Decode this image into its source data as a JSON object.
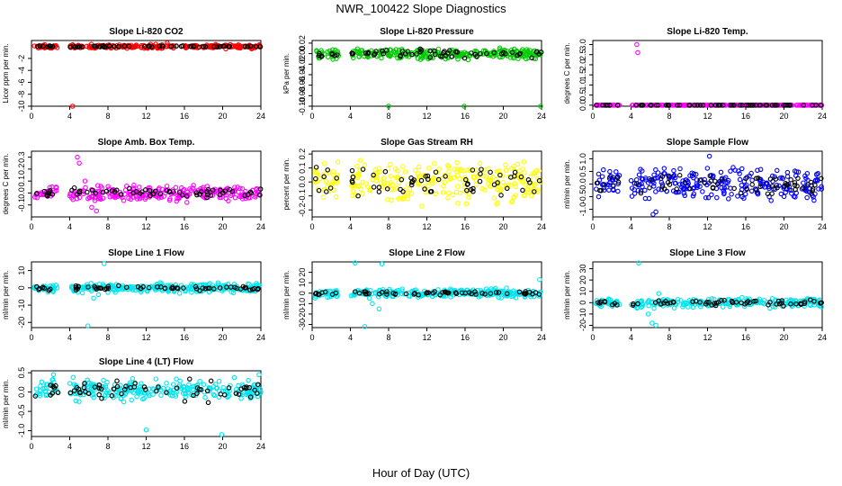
{
  "page_title": "NWR_100422  Slope Diagnostics",
  "x_axis_label": "Hour of Day (UTC)",
  "chart_data": [
    {
      "type": "scatter",
      "title": "Slope Li-820 CO2",
      "ylabel": "Licor ppm per min.",
      "color": "#ff0000",
      "xlim": [
        0,
        24
      ],
      "ylim": [
        -10,
        1
      ],
      "xticks": [
        0,
        4,
        8,
        12,
        16,
        20,
        24
      ],
      "yticks": [
        -10,
        -8,
        -6,
        -4,
        -2
      ],
      "ytick_labels": [
        "-10",
        "-8",
        "-6",
        "-4",
        "-2"
      ],
      "center": 0,
      "spread": 0.25,
      "black_spread": 0.1,
      "outliers": [
        {
          "x": 4.3,
          "y": -10
        },
        {
          "x": 14.2,
          "y": 0.6
        }
      ]
    },
    {
      "type": "scatter",
      "title": "Slope Li-820 Pressure",
      "ylabel": "kPa per min.",
      "color": "#00cc00",
      "xlim": [
        0,
        24
      ],
      "ylim": [
        -0.1,
        0.025
      ],
      "xticks": [
        0,
        4,
        8,
        12,
        16,
        20,
        24
      ],
      "yticks": [
        -0.1,
        -0.08,
        -0.06,
        -0.04,
        -0.02,
        0.0,
        0.02
      ],
      "ytick_labels": [
        "-0.10",
        "-0.08",
        "-0.06",
        "-0.04",
        "-0.02",
        "0.00",
        "0.02"
      ],
      "center": 0,
      "spread": 0.008,
      "black_spread": 0.006,
      "outliers": [
        {
          "x": 8.0,
          "y": -0.1
        },
        {
          "x": 15.9,
          "y": -0.1
        },
        {
          "x": 23.9,
          "y": -0.1
        }
      ]
    },
    {
      "type": "scatter",
      "title": "Slope Li-820 Temp.",
      "ylabel": "degrees C per min.",
      "color": "#ff00ff",
      "xlim": [
        0,
        24
      ],
      "ylim": [
        -0.05,
        3.2
      ],
      "xticks": [
        0,
        4,
        8,
        12,
        16,
        20,
        24
      ],
      "yticks": [
        0.0,
        0.5,
        1.0,
        1.5,
        2.0,
        2.5,
        3.0
      ],
      "ytick_labels": [
        "0.0",
        "0.5",
        "1.0",
        "1.5",
        "2.0",
        "2.5",
        "3.0"
      ],
      "center": 0,
      "spread": 0.0,
      "black_spread": 0.0,
      "outliers": [
        {
          "x": 4.6,
          "y": 3.0
        },
        {
          "x": 4.7,
          "y": 2.6
        }
      ]
    },
    {
      "type": "scatter",
      "title": "Slope Amb. Box Temp.",
      "ylabel": "degrees C per min.",
      "color": "#ff00ff",
      "xlim": [
        0,
        24
      ],
      "ylim": [
        -0.2,
        0.35
      ],
      "xticks": [
        0,
        4,
        8,
        12,
        16,
        20,
        24
      ],
      "yticks": [
        -0.1,
        0.0,
        0.1,
        0.2,
        0.3
      ],
      "ytick_labels": [
        "-0.1",
        "0.0",
        "0.1",
        "0.2",
        "0.3"
      ],
      "center": 0,
      "spread": 0.05,
      "black_spread": 0.03,
      "outliers": [
        {
          "x": 4.8,
          "y": 0.3
        },
        {
          "x": 5.0,
          "y": 0.25
        },
        {
          "x": 5.6,
          "y": 0.1
        },
        {
          "x": 6.3,
          "y": -0.12
        },
        {
          "x": 6.8,
          "y": -0.15
        },
        {
          "x": 7.2,
          "y": -0.05
        }
      ]
    },
    {
      "type": "scatter",
      "title": "Slope Gas Stream RH",
      "ylabel": "percent per min.",
      "color": "#ffff00",
      "xlim": [
        0,
        24
      ],
      "ylim": [
        -0.25,
        0.22
      ],
      "xticks": [
        0,
        4,
        8,
        12,
        16,
        20,
        24
      ],
      "yticks": [
        -0.2,
        -0.1,
        0.0,
        0.1,
        0.2
      ],
      "ytick_labels": [
        "-0.2",
        "-0.1",
        "0.0",
        "0.1",
        "0.2"
      ],
      "center": 0,
      "spread": 0.12,
      "black_spread": 0.08,
      "outliers": []
    },
    {
      "type": "scatter",
      "title": "Slope Sample Flow",
      "ylabel": "ml/min per min.",
      "color": "#0000ff",
      "xlim": [
        0,
        24
      ],
      "ylim": [
        -1.3,
        1.3
      ],
      "xticks": [
        0,
        4,
        8,
        12,
        16,
        20,
        24
      ],
      "yticks": [
        -1.0,
        -0.5,
        0.0,
        0.5,
        1.0
      ],
      "ytick_labels": [
        "-1.0",
        "-0.5",
        "0.0",
        "0.5",
        "1.0"
      ],
      "center": 0,
      "spread": 0.5,
      "black_spread": 0.35,
      "outliers": [
        {
          "x": 6.3,
          "y": -1.2
        },
        {
          "x": 6.6,
          "y": -1.1
        },
        {
          "x": 12.2,
          "y": 1.1
        }
      ]
    },
    {
      "type": "scatter",
      "title": "Slope Line 1 Flow",
      "ylabel": "ml/min per min.",
      "color": "#00e5ee",
      "xlim": [
        0,
        24
      ],
      "ylim": [
        -23,
        15
      ],
      "xticks": [
        0,
        4,
        8,
        12,
        16,
        20,
        24
      ],
      "yticks": [
        -20,
        -10,
        0,
        10
      ],
      "ytick_labels": [
        "-20",
        "-10",
        "0",
        "10"
      ],
      "center": 0,
      "spread": 2,
      "black_spread": 1,
      "outliers": [
        {
          "x": 5.9,
          "y": -22
        },
        {
          "x": 7.6,
          "y": 14
        },
        {
          "x": 6.5,
          "y": -6
        },
        {
          "x": 7.0,
          "y": -4
        }
      ]
    },
    {
      "type": "scatter",
      "title": "Slope Line 2 Flow",
      "ylabel": "ml/min per min.",
      "color": "#00e5ee",
      "xlim": [
        0,
        24
      ],
      "ylim": [
        -33,
        30
      ],
      "xticks": [
        0,
        4,
        8,
        12,
        16,
        20,
        24
      ],
      "yticks": [
        -30,
        -20,
        -10,
        0,
        10,
        20
      ],
      "ytick_labels": [
        "-30",
        "-20",
        "-10",
        "0",
        "10",
        "20"
      ],
      "center": 0,
      "spread": 3,
      "black_spread": 1.5,
      "outliers": [
        {
          "x": 4.5,
          "y": 29
        },
        {
          "x": 5.5,
          "y": -32
        },
        {
          "x": 6.3,
          "y": -10
        },
        {
          "x": 7.3,
          "y": 28
        },
        {
          "x": 6.0,
          "y": -5
        },
        {
          "x": 7.0,
          "y": -15
        },
        {
          "x": 23.8,
          "y": 13
        }
      ]
    },
    {
      "type": "scatter",
      "title": "Slope Line 3 Flow",
      "ylabel": "ml/min per min.",
      "color": "#00e5ee",
      "xlim": [
        0,
        24
      ],
      "ylim": [
        -22,
        36
      ],
      "xticks": [
        0,
        4,
        8,
        12,
        16,
        20,
        24
      ],
      "yticks": [
        -20,
        -10,
        0,
        10,
        20,
        30
      ],
      "ytick_labels": [
        "-20",
        "-10",
        "0",
        "10",
        "20",
        "30"
      ],
      "center": 0,
      "spread": 3,
      "black_spread": 2,
      "outliers": [
        {
          "x": 4.8,
          "y": 35
        },
        {
          "x": 5.8,
          "y": -10
        },
        {
          "x": 6.2,
          "y": -18
        },
        {
          "x": 6.6,
          "y": -20
        },
        {
          "x": 6.9,
          "y": 8
        },
        {
          "x": 6.4,
          "y": -5
        }
      ]
    },
    {
      "type": "scatter",
      "title": "Slope Line 4 (LT) Flow",
      "ylabel": "ml/min per min.",
      "color": "#00e5ee",
      "xlim": [
        0,
        24
      ],
      "ylim": [
        -1.15,
        0.55
      ],
      "xticks": [
        0,
        4,
        8,
        12,
        16,
        20,
        24
      ],
      "yticks": [
        -1.0,
        -0.5,
        0.0,
        0.5
      ],
      "ytick_labels": [
        "-1.0",
        "-0.5",
        "0.0",
        "0.5"
      ],
      "center": 0.05,
      "spread": 0.2,
      "black_spread": 0.2,
      "outliers": [
        {
          "x": 12.0,
          "y": -0.98
        },
        {
          "x": 19.9,
          "y": -1.1
        },
        {
          "x": 2.3,
          "y": 0.45
        },
        {
          "x": 23.8,
          "y": 0.45
        }
      ]
    }
  ]
}
